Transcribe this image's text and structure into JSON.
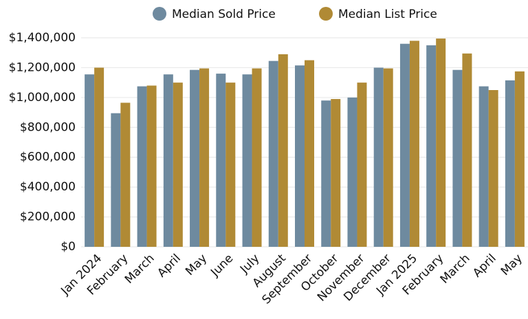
{
  "chart_data": {
    "type": "bar",
    "categories": [
      "Jan 2024",
      "February",
      "March",
      "April",
      "May",
      "June",
      "July",
      "August",
      "September",
      "October",
      "November",
      "December",
      "Jan 2025",
      "February",
      "March",
      "April",
      "May"
    ],
    "series": [
      {
        "name": "Median Sold Price",
        "color": "#6e8a9f",
        "values": [
          1155000,
          895000,
          1075000,
          1155000,
          1185000,
          1160000,
          1155000,
          1245000,
          1215000,
          980000,
          1000000,
          1200000,
          1360000,
          1350000,
          1185000,
          1075000,
          1115000
        ]
      },
      {
        "name": "Median List Price",
        "color": "#b08a35",
        "values": [
          1200000,
          965000,
          1080000,
          1100000,
          1195000,
          1100000,
          1195000,
          1290000,
          1250000,
          990000,
          1100000,
          1195000,
          1380000,
          1395000,
          1295000,
          1050000,
          1175000
        ]
      }
    ],
    "ylim": [
      0,
      1400000
    ],
    "yticks": [
      {
        "value": 0,
        "label": "$0"
      },
      {
        "value": 200000,
        "label": "$200,000"
      },
      {
        "value": 400000,
        "label": "$400,000"
      },
      {
        "value": 600000,
        "label": "$600,000"
      },
      {
        "value": 800000,
        "label": "$800,000"
      },
      {
        "value": 1000000,
        "label": "$1,000,000"
      },
      {
        "value": 1200000,
        "label": "$1,200,000"
      },
      {
        "value": 1400000,
        "label": "$1,400,000"
      }
    ],
    "grid": true,
    "legend": "top"
  }
}
